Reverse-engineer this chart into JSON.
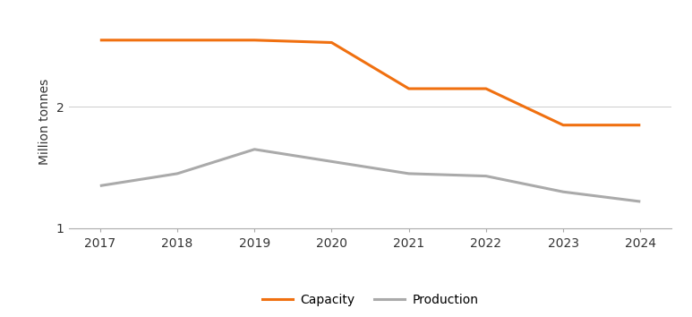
{
  "years": [
    2017,
    2018,
    2019,
    2020,
    2021,
    2022,
    2023,
    2024
  ],
  "capacity": [
    2.55,
    2.55,
    2.55,
    2.53,
    2.15,
    2.15,
    1.85,
    1.85
  ],
  "production": [
    1.35,
    1.45,
    1.65,
    1.55,
    1.45,
    1.43,
    1.3,
    1.22
  ],
  "capacity_color": "#F07010",
  "production_color": "#AAAAAA",
  "ylabel": "Million tonnes",
  "ylim": [
    1.0,
    2.75
  ],
  "yticks": [
    1,
    2
  ],
  "legend_labels": [
    "Capacity",
    "Production"
  ],
  "line_width": 2.2,
  "background_color": "#FFFFFF",
  "grid_color": "#CCCCCC",
  "xlim_left": 2016.6,
  "xlim_right": 2024.4
}
